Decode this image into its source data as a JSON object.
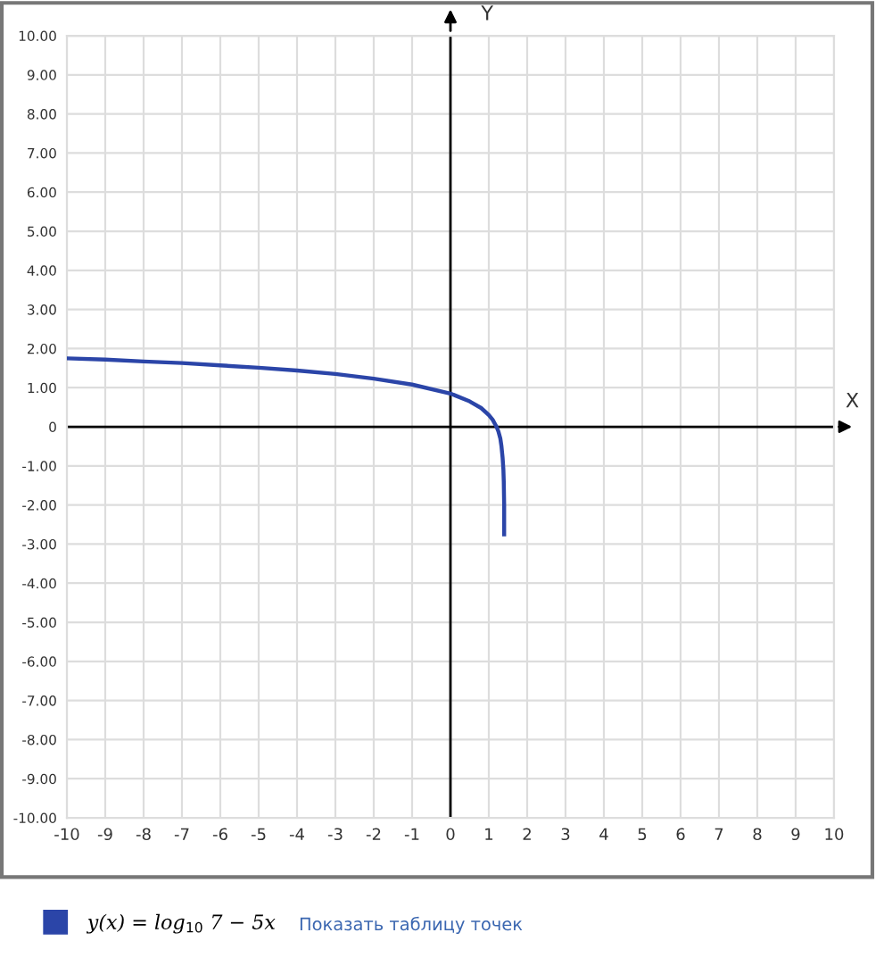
{
  "chart_data": {
    "type": "line",
    "xlabel": "X",
    "ylabel": "Y",
    "series": [
      {
        "name": "y(x) = log$_{10}$ 7 − 5x",
        "color": "#2b45a8",
        "x": [
          -10,
          -9,
          -8,
          -7,
          -6,
          -5,
          -4,
          -3,
          -2,
          -1,
          0,
          0.5,
          0.8,
          1.0,
          1.1,
          1.2,
          1.25,
          1.3,
          1.33,
          1.36,
          1.38,
          1.39,
          1.4,
          1.4
        ],
        "values": [
          1.75,
          1.72,
          1.67,
          1.63,
          1.57,
          1.51,
          1.44,
          1.35,
          1.23,
          1.08,
          0.85,
          0.65,
          0.48,
          0.3,
          0.18,
          0.0,
          -0.12,
          -0.3,
          -0.5,
          -0.8,
          -1.1,
          -1.4,
          -2.0,
          -2.75
        ]
      }
    ],
    "xlim": [
      -10,
      10
    ],
    "ylim": [
      -10,
      10
    ],
    "xticks": [
      -10,
      -9,
      -8,
      -7,
      -6,
      -5,
      -4,
      -3,
      -2,
      -1,
      0,
      1,
      2,
      3,
      4,
      5,
      6,
      7,
      8,
      9,
      10
    ],
    "yticks": [
      {
        "value": 10,
        "label": "10.00"
      },
      {
        "value": 9,
        "label": "9.00"
      },
      {
        "value": 8,
        "label": "8.00"
      },
      {
        "value": 7,
        "label": "7.00"
      },
      {
        "value": 6,
        "label": "6.00"
      },
      {
        "value": 5,
        "label": "5.00"
      },
      {
        "value": 4,
        "label": "4.00"
      },
      {
        "value": 3,
        "label": "3.00"
      },
      {
        "value": 2,
        "label": "2.00"
      },
      {
        "value": 1,
        "label": "1.00"
      },
      0,
      {
        "value": -1,
        "label": "-1.00"
      },
      {
        "value": -2,
        "label": "-2.00"
      },
      {
        "value": -3,
        "label": "-3.00"
      },
      {
        "value": -4,
        "label": "-4.00"
      },
      {
        "value": -5,
        "label": "-5.00"
      },
      {
        "value": -6,
        "label": "-6.00"
      },
      {
        "value": -7,
        "label": "-7.00"
      },
      {
        "value": -8,
        "label": "-8.00"
      },
      {
        "value": -9,
        "label": "-9.00"
      },
      {
        "value": -10,
        "label": "-10.00"
      }
    ],
    "grid": true,
    "legend": "bottom left",
    "marker": "none",
    "line_style": "solid",
    "annotations": [
      "Показать таблицу точек"
    ]
  }
}
